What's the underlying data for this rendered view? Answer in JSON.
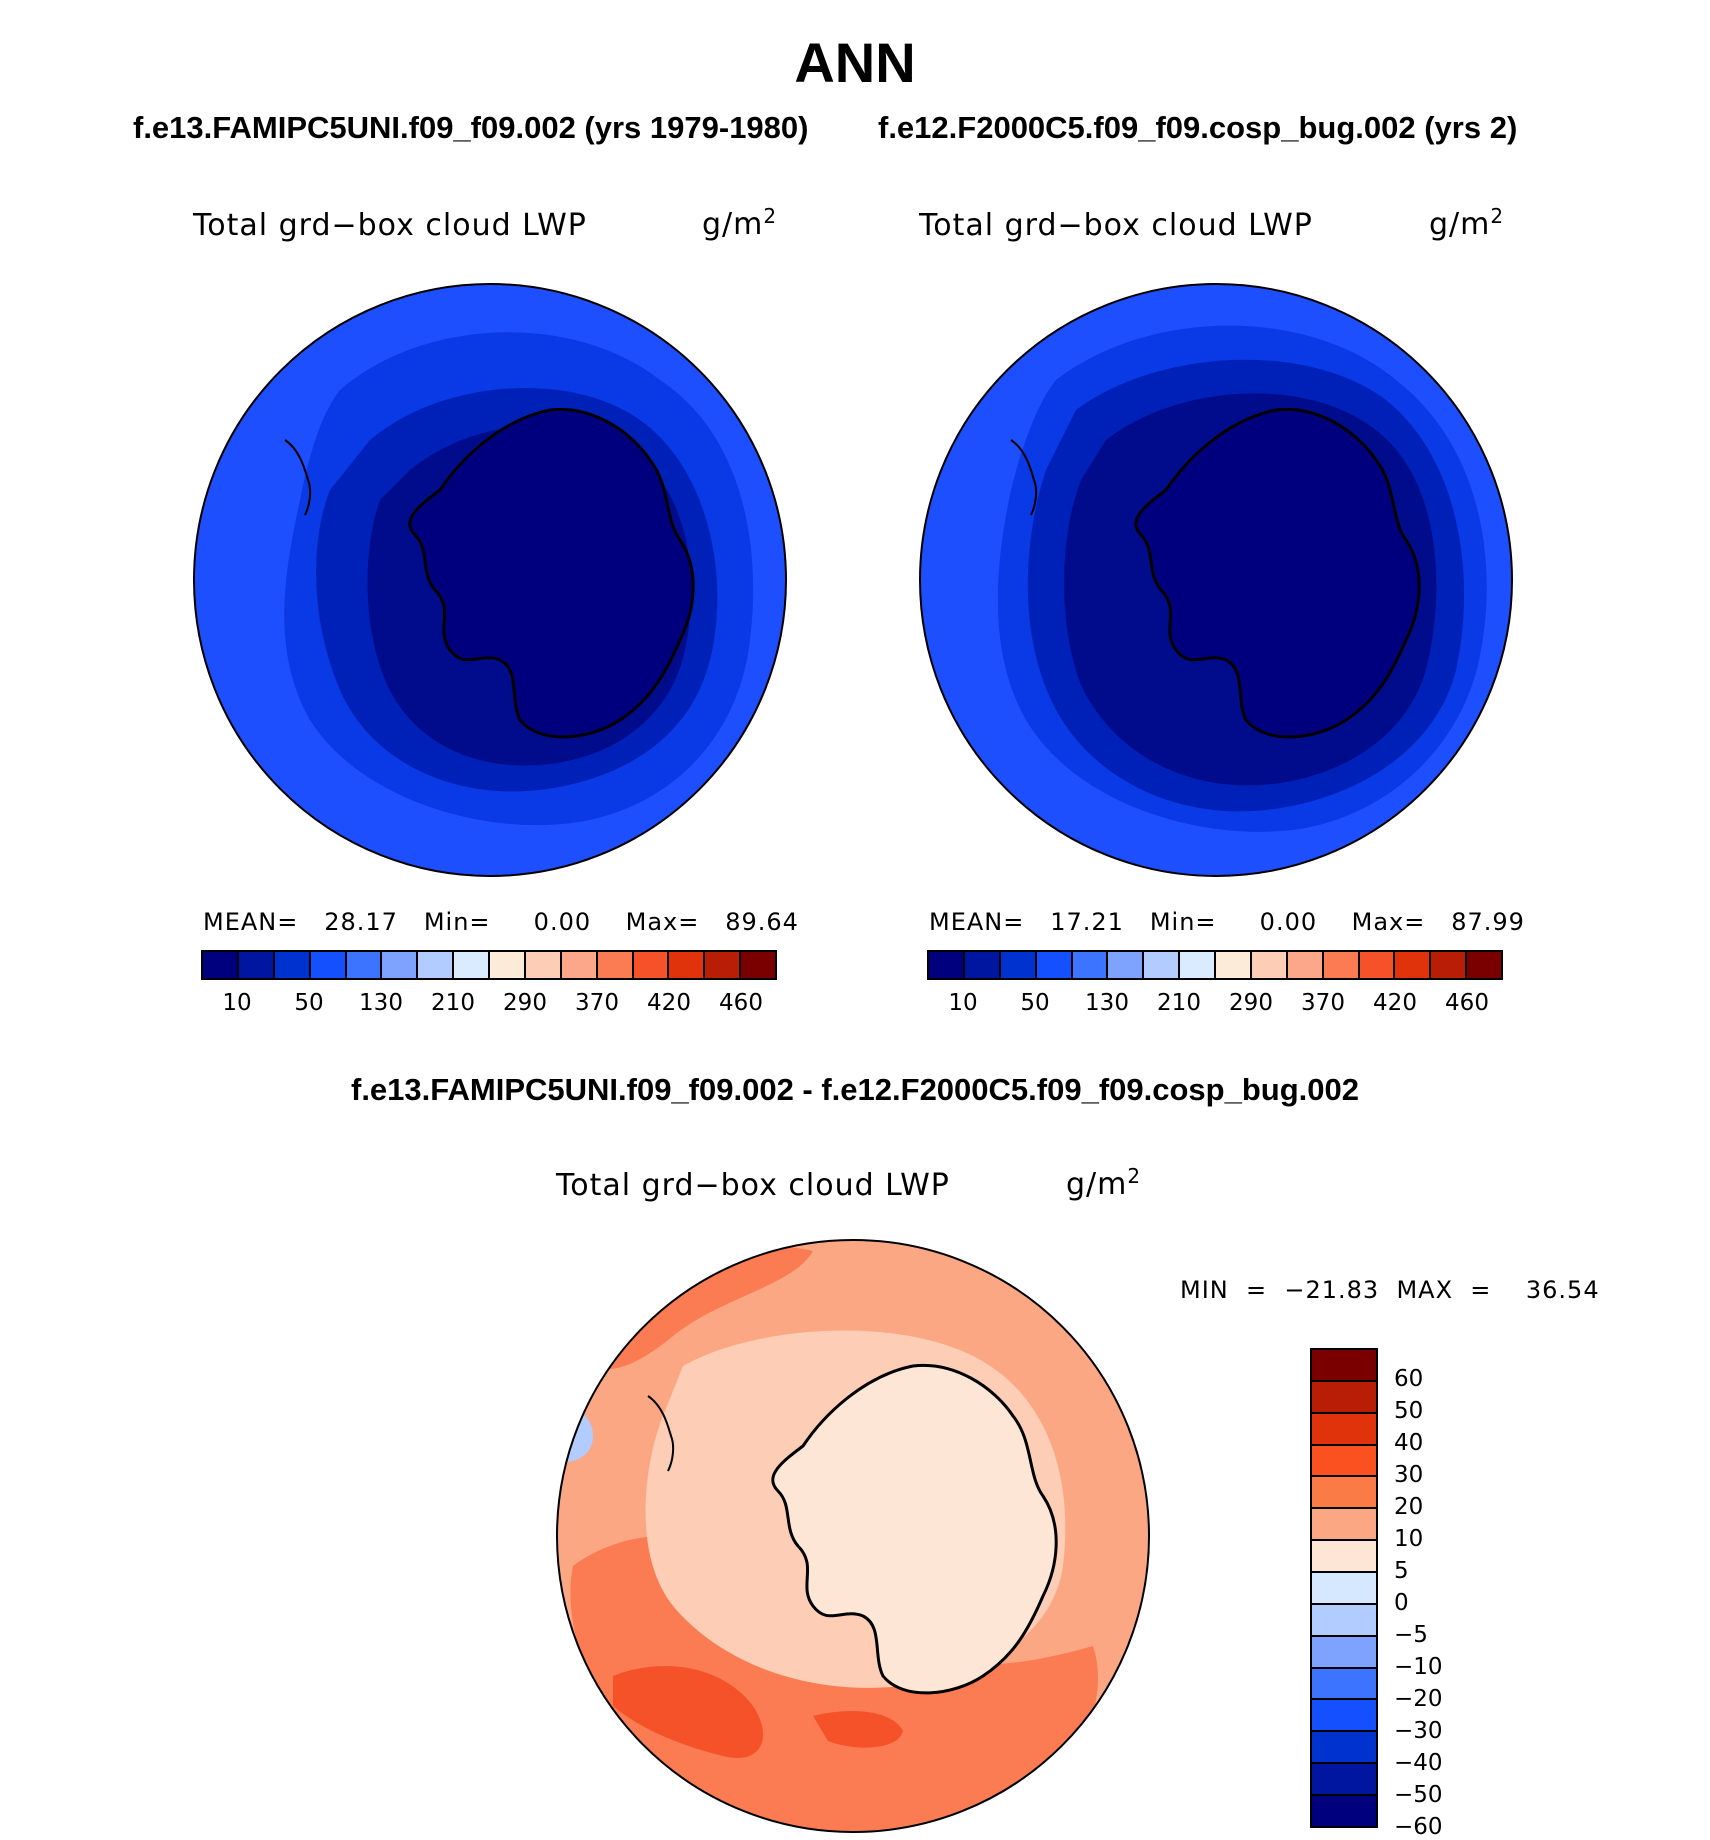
{
  "header": {
    "season": "ANN",
    "left_case": "f.e13.FAMIPC5UNI.f09_f09.002 (yrs 1979-1980)",
    "right_case": "f.e12.F2000C5.f09_f09.cosp_bug.002 (yrs 2)",
    "diff_title": "f.e13.FAMIPC5UNI.f09_f09.002 - f.e12.F2000C5.f09_f09.cosp_bug.002"
  },
  "panels": {
    "left": {
      "variable": "Total grd−box cloud LWP",
      "units": "g/m",
      "units_exp": "2",
      "stats": "MEAN=   28.17   Min=     0.00    Max=   89.64"
    },
    "right": {
      "variable": "Total grd−box cloud LWP",
      "units": "g/m",
      "units_exp": "2",
      "stats": "MEAN=   17.21   Min=     0.00    Max=   87.99"
    },
    "diff": {
      "variable": "Total grd−box cloud LWP",
      "units": "g/m",
      "units_exp": "2",
      "stats": "MIN  =  −21.83  MAX  =    36.54"
    }
  },
  "colorbar_main": {
    "colors": [
      "#00007f",
      "#0016a0",
      "#0032d0",
      "#1550ff",
      "#3c74ff",
      "#7ea3ff",
      "#b3ccff",
      "#daeaff",
      "#fdebd9",
      "#fdcdb5",
      "#fca789",
      "#fb7b52",
      "#f5522a",
      "#e0320b",
      "#b81d05",
      "#7a0000"
    ],
    "labels": [
      "10",
      "50",
      "130",
      "210",
      "290",
      "370",
      "420",
      "460"
    ]
  },
  "colorbar_diff": {
    "colors": [
      "#7a0000",
      "#b81d05",
      "#e0320b",
      "#fb5020",
      "#fb7b46",
      "#fca783",
      "#fde6d5",
      "#d6e8ff",
      "#b3ccff",
      "#7ea3ff",
      "#3c74ff",
      "#1550ff",
      "#0032d0",
      "#0016a0",
      "#00007f"
    ],
    "labels": [
      "60",
      "50",
      "40",
      "30",
      "20",
      "10",
      "5",
      "0",
      "−5",
      "−10",
      "−20",
      "−30",
      "−40",
      "−50",
      "−60"
    ]
  },
  "map_colors": {
    "left": [
      "#1d4fff",
      "#0a39e6",
      "#0021b8",
      "#000c8c",
      "#00007f"
    ],
    "right": [
      "#1d4fff",
      "#0a39e6",
      "#0021b8",
      "#000c8c",
      "#00007f"
    ],
    "diff": [
      "#fca783",
      "#fb7b52",
      "#f5522a",
      "#fdcdb5",
      "#fde6d5"
    ]
  }
}
